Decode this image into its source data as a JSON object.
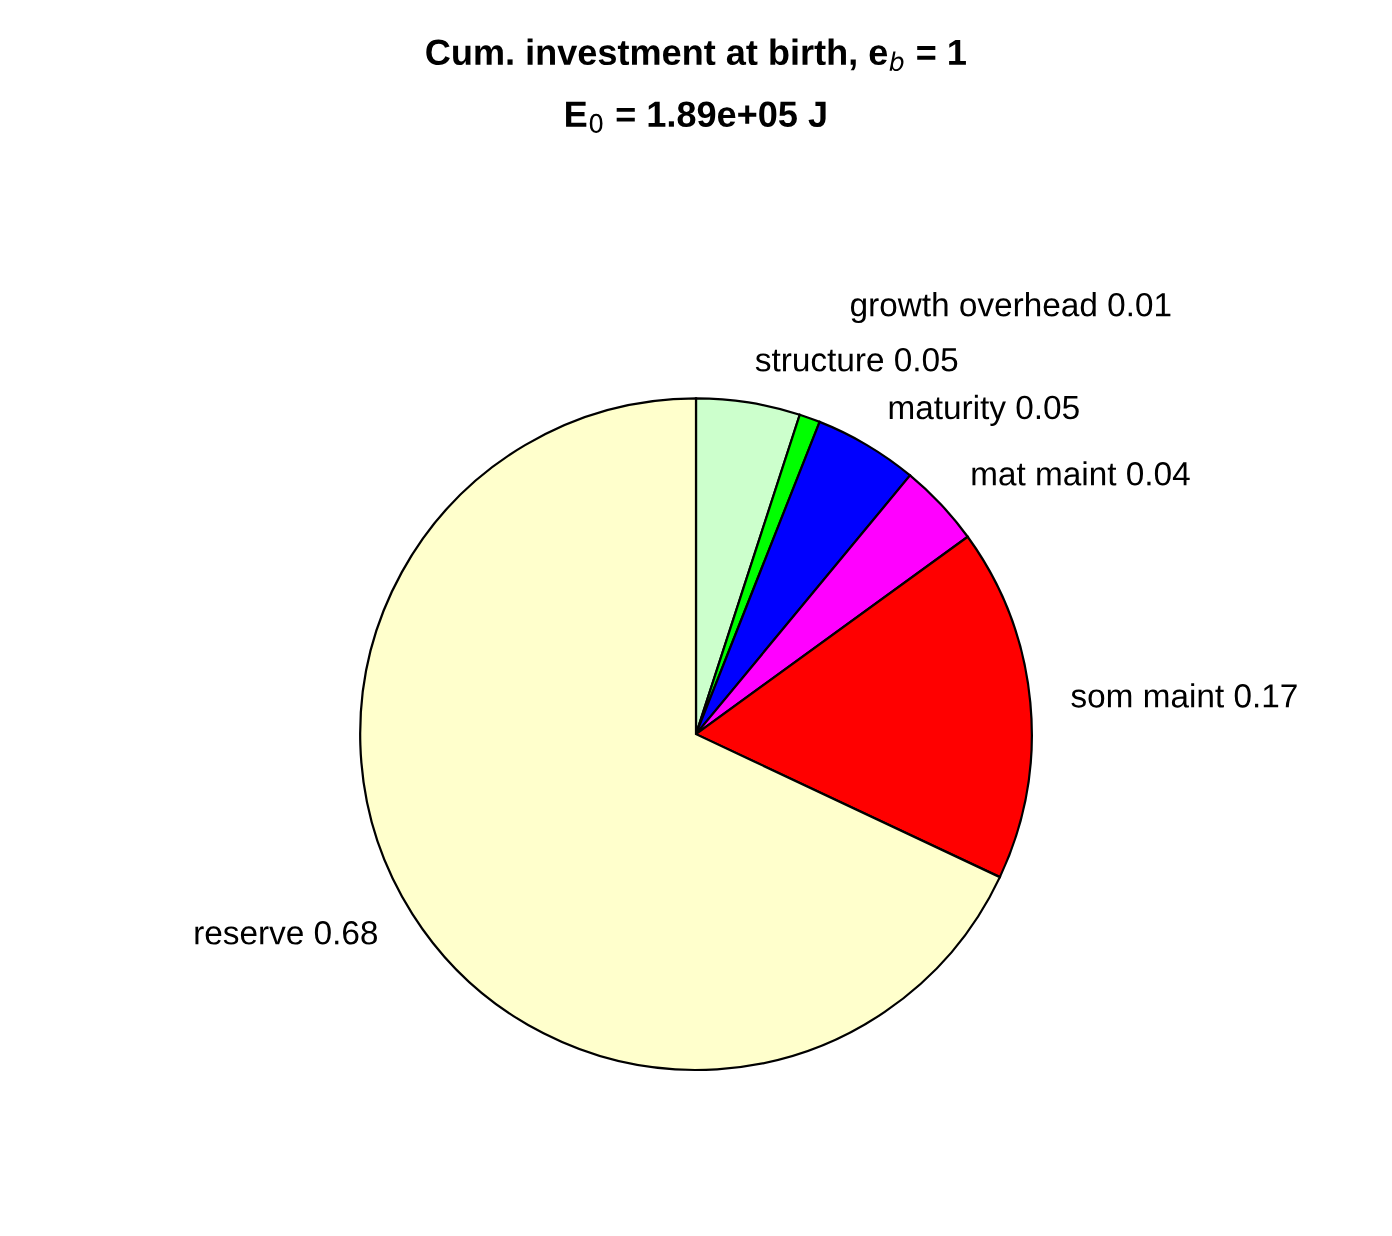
{
  "chart_data": {
    "type": "pie",
    "title": "Cum. investment at birth, e$_{b}$ = 1",
    "subtitle": "E$_{0}$ = 1.89e+05 J",
    "categories": [
      "structure 0.05",
      "growth overhead 0.01",
      "maturity 0.05",
      "mat maint 0.04",
      "som maint 0.17",
      "reserve 0.68"
    ],
    "values": [
      0.05,
      0.01,
      0.05,
      0.04,
      0.17,
      0.68
    ],
    "colors": [
      "#ccffcc",
      "#00ff00",
      "#0000ff",
      "#ff00ff",
      "#ff0000",
      "#ffffcc"
    ],
    "legend": false
  }
}
